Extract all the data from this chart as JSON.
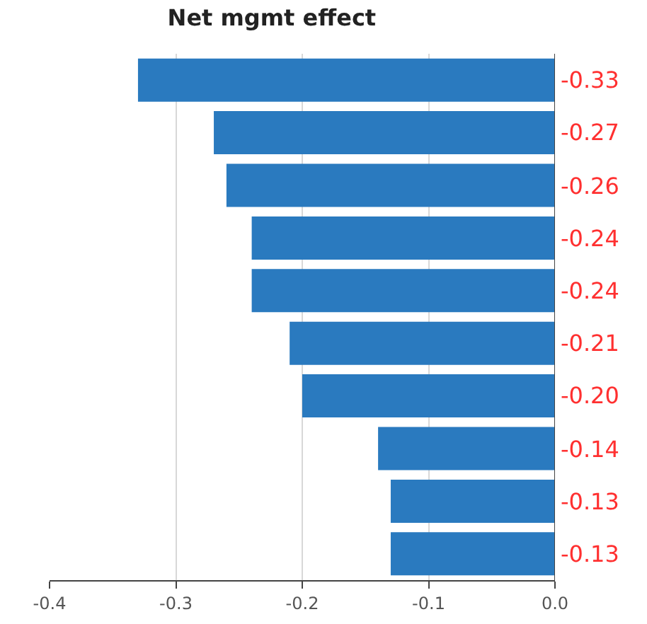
{
  "chart_data": {
    "type": "bar",
    "orientation": "horizontal",
    "title": "Net mgmt effect",
    "categories": [
      null,
      null,
      null,
      null,
      null,
      null,
      null,
      null,
      null,
      null
    ],
    "values": [
      -0.33,
      -0.27,
      -0.26,
      -0.24,
      -0.24,
      -0.21,
      -0.2,
      -0.14,
      -0.13,
      -0.13
    ],
    "value_labels": [
      "-0.33",
      "-0.27",
      "-0.26",
      "-0.24",
      "-0.24",
      "-0.21",
      "-0.20",
      "-0.14",
      "-0.13",
      "-0.13"
    ],
    "color": "#2a7abf",
    "xlim": [
      -0.4,
      0
    ],
    "xticks": [
      -0.4,
      -0.3,
      -0.2,
      -0.1,
      {
        "value": 0,
        "label": "0.0"
      }
    ],
    "grid": "x",
    "tick_labels": "x"
  }
}
